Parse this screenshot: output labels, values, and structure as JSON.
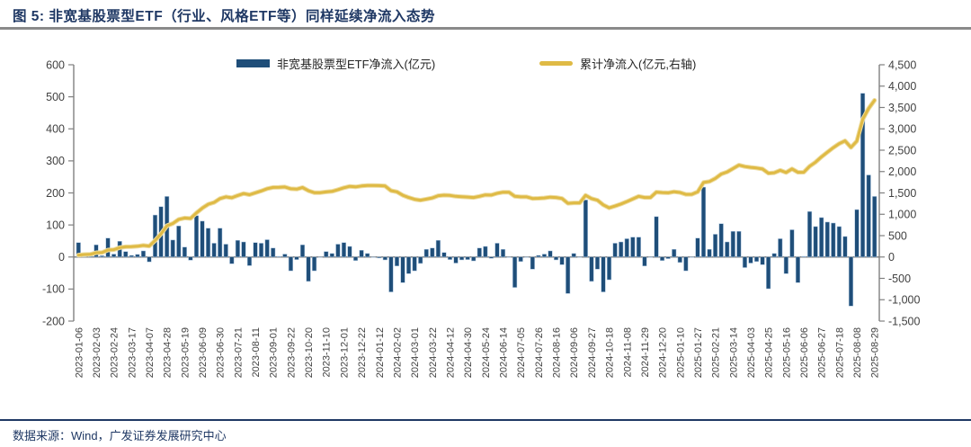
{
  "header": {
    "title": "图 5:  非宽基股票型ETF（行业、风格ETF等）同样延续净流入态势"
  },
  "legend": {
    "bar_label": "非宽基股票型ETF净流入(亿元)",
    "line_label": "累计净流入(亿元,右轴)"
  },
  "footer": {
    "source": "数据来源：Wind，广发证券发展研究中心"
  },
  "colors": {
    "bar": "#1F4E79",
    "bar_border": "#A8C3DE",
    "line": "#DFBA45",
    "line_halo": "#EDDCA0",
    "axis": "#808080",
    "tick_text": "#404040",
    "title": "#1F3864"
  },
  "chart_data": {
    "type": "bar+line",
    "title": "非宽基股票型ETF（行业、风格ETF等）净流入",
    "legend_position": "top",
    "grid": false,
    "x_tick_every": 3,
    "x_tick_labels": [
      "2023-01-06",
      "2023-02-03",
      "2023-02-24",
      "2023-03-17",
      "2023-04-07",
      "2023-04-28",
      "2023-05-19",
      "2023-06-09",
      "2023-06-30",
      "2023-07-21",
      "2023-08-11",
      "2023-09-01",
      "2023-09-22",
      "2023-10-20",
      "2023-11-10",
      "2023-12-01",
      "2023-12-22",
      "2024-01-12",
      "2024-02-02",
      "2024-03-01",
      "2024-03-22",
      "2024-04-12",
      "2024-04-30",
      "2024-05-24",
      "2024-06-14",
      "2024-07-05",
      "2024-07-26",
      "2024-08-16",
      "2024-09-06",
      "2024-09-27",
      "2024-10-18",
      "2024-11-08",
      "2024-11-29",
      "2024-12-20",
      "2025-01-10",
      "2025-01-27",
      "2025-02-21",
      "2025-03-14",
      "2025-04-03",
      "2025-04-25",
      "2025-05-16",
      "2025-06-06",
      "2025-06-27",
      "2025-07-18",
      "2025-08-08",
      "2025-08-29"
    ],
    "left_axis": {
      "min": -200,
      "max": 600,
      "step": 100,
      "tick_labels": [
        "600",
        "500",
        "400",
        "300",
        "200",
        "100",
        "0",
        "-100",
        "-200"
      ]
    },
    "right_axis": {
      "min": -1500,
      "max": 4500,
      "step": 500,
      "tick_labels": [
        "4,500",
        "4,000",
        "3,500",
        "3,000",
        "2,500",
        "2,000",
        "1,500",
        "1,000",
        "500",
        "0",
        "-500",
        "-1,000",
        "-1,500"
      ]
    },
    "series": [
      {
        "name": "非宽基股票型ETF净流入(亿元)",
        "type": "bar",
        "axis": "left",
        "values": [
          45,
          12,
          5,
          38,
          4,
          59,
          9,
          49,
          17,
          5,
          8,
          19,
          -15,
          131,
          157,
          189,
          53,
          97,
          31,
          -10,
          129,
          112,
          90,
          43,
          90,
          40,
          -21,
          52,
          47,
          -27,
          45,
          43,
          54,
          28,
          2,
          9,
          -43,
          -8,
          38,
          -76,
          -43,
          0,
          17,
          11,
          40,
          45,
          33,
          -11,
          21,
          11,
          0,
          -3,
          -9,
          -109,
          -28,
          -80,
          -52,
          -43,
          -20,
          24,
          28,
          52,
          14,
          -8,
          -19,
          -9,
          -8,
          -12,
          28,
          33,
          -4,
          43,
          24,
          0,
          -95,
          -14,
          0,
          -38,
          5,
          9,
          19,
          -9,
          -24,
          -114,
          11,
          0,
          178,
          -76,
          -38,
          -109,
          -71,
          43,
          47,
          57,
          62,
          62,
          -28,
          0,
          126,
          -11,
          -5,
          24,
          -17,
          -43,
          0,
          59,
          218,
          24,
          71,
          104,
          47,
          80,
          80,
          -33,
          -19,
          -14,
          -24,
          -99,
          11,
          57,
          -52,
          85,
          -80,
          2,
          142,
          95,
          123,
          109,
          106,
          95,
          64,
          -153,
          148,
          511,
          256,
          189
        ]
      },
      {
        "name": "累计净流入(亿元,右轴)",
        "type": "line",
        "axis": "right",
        "derived": "cumulative_sum_of_bar_values"
      }
    ]
  }
}
